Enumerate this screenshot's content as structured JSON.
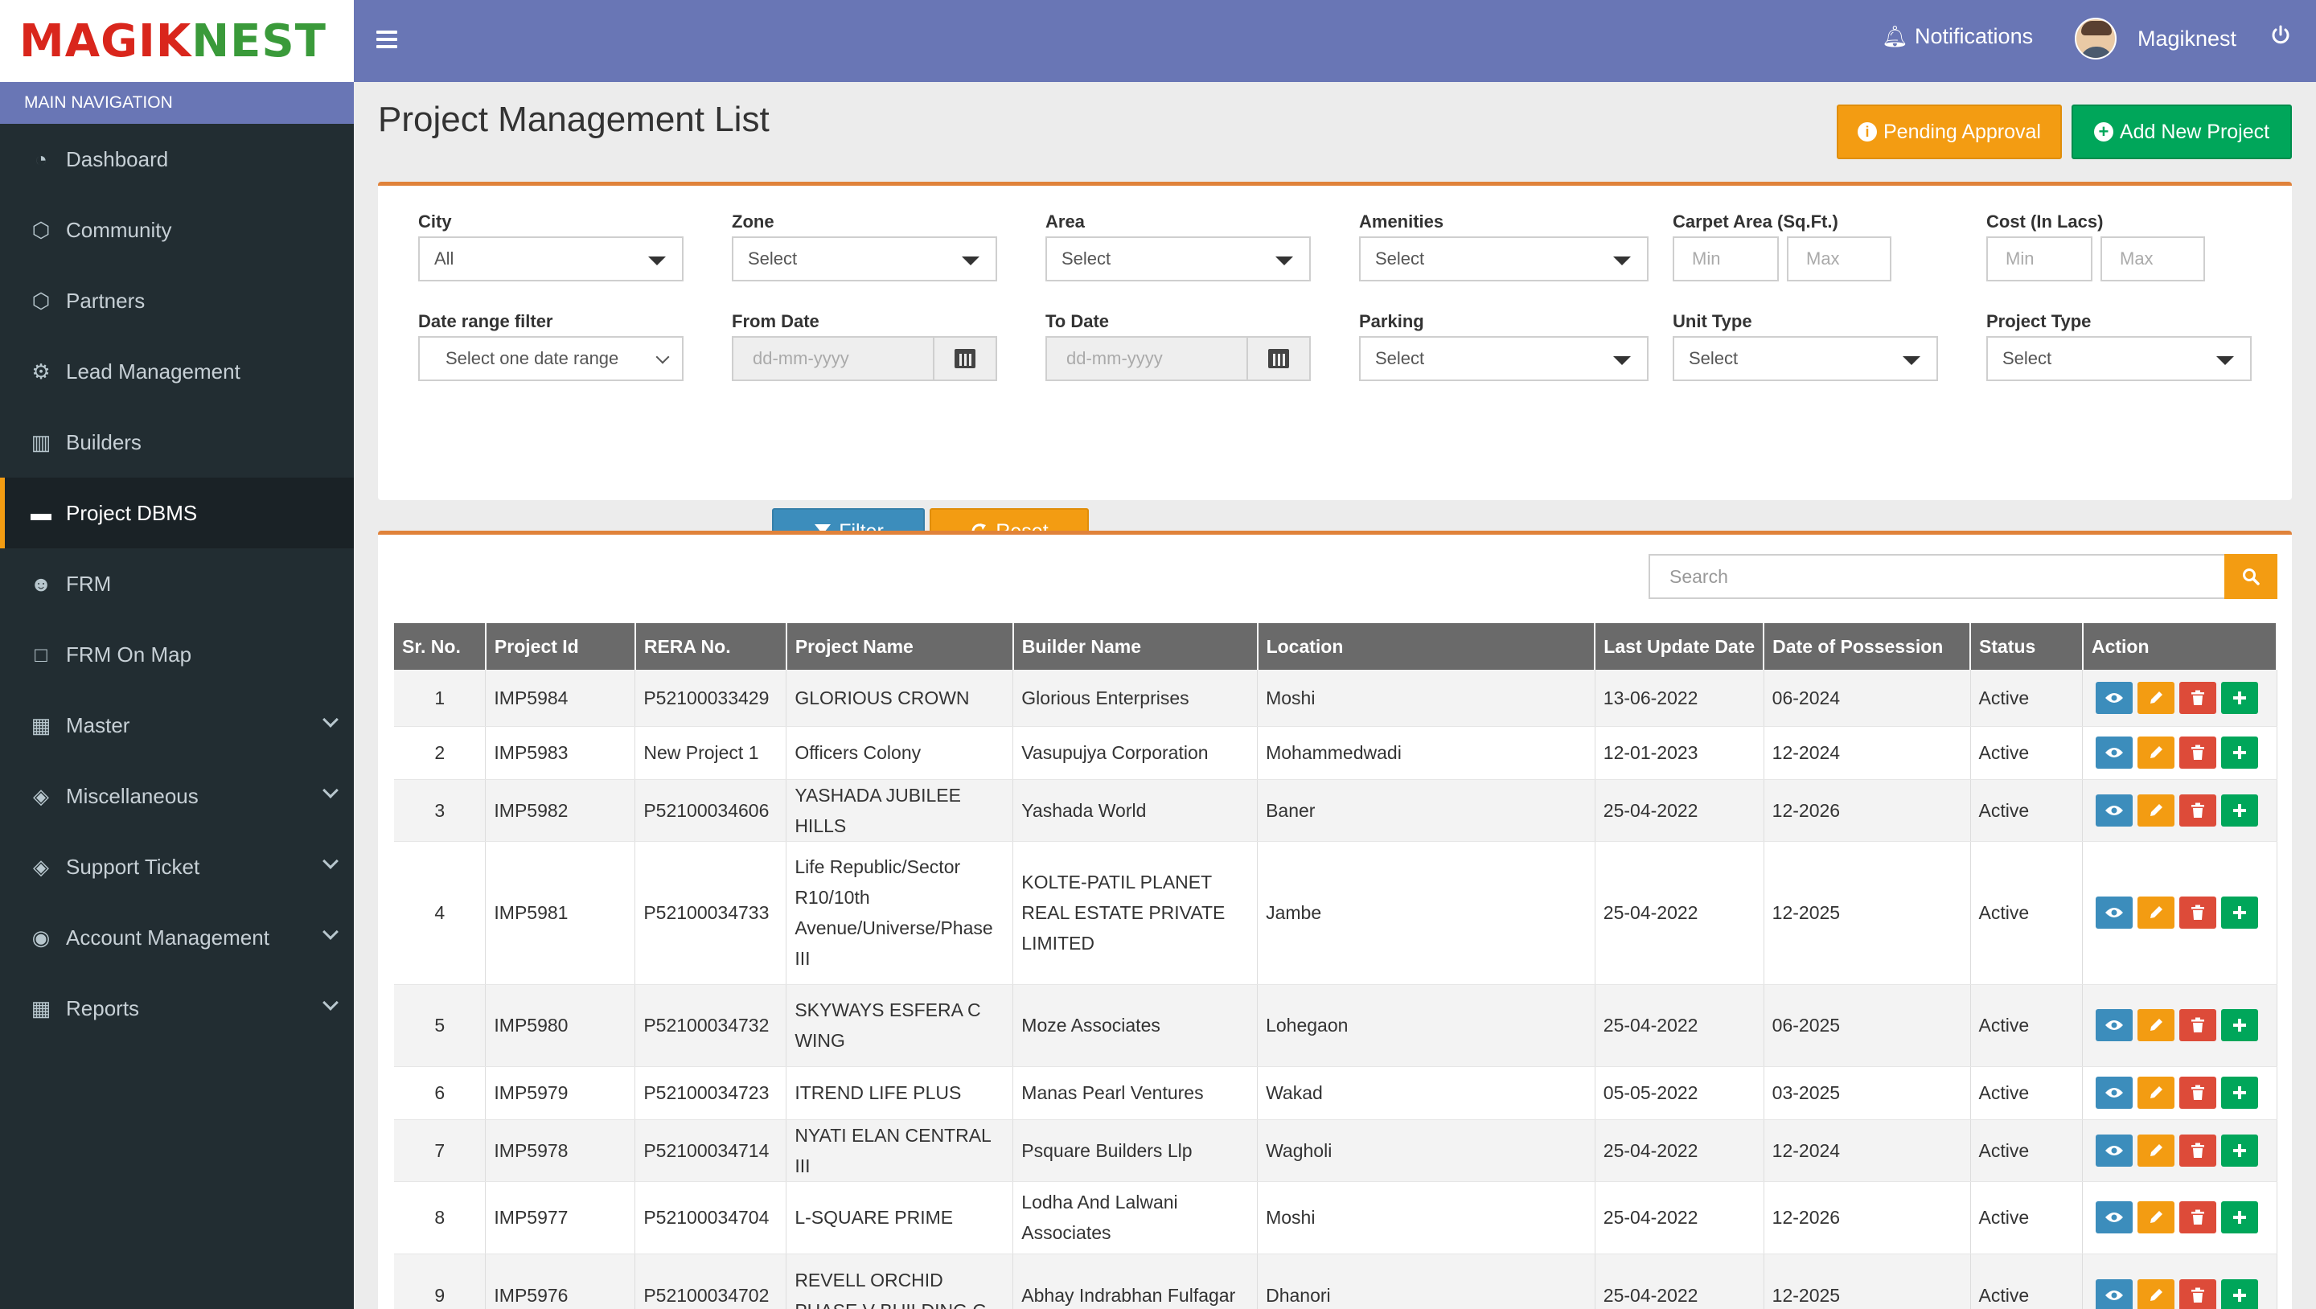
{
  "brand": {
    "logo_part1": "MAG",
    "logo_part2": "IK",
    "logo_part3": "NEST"
  },
  "sidebar": {
    "header": "MAIN NAVIGATION",
    "items": [
      {
        "label": "Dashboard",
        "icon": "dashboard-icon"
      },
      {
        "label": "Community",
        "icon": "community-icon"
      },
      {
        "label": "Partners",
        "icon": "partners-icon"
      },
      {
        "label": "Lead Management",
        "icon": "gear-icon"
      },
      {
        "label": "Builders",
        "icon": "building-icon"
      },
      {
        "label": "Project DBMS",
        "icon": "folder-icon",
        "active": true
      },
      {
        "label": "FRM",
        "icon": "users-icon"
      },
      {
        "label": "FRM On Map",
        "icon": "map-icon"
      },
      {
        "label": "Master",
        "icon": "table-icon",
        "expandable": true
      },
      {
        "label": "Miscellaneous",
        "icon": "tag-icon",
        "expandable": true
      },
      {
        "label": "Support Ticket",
        "icon": "tag-icon",
        "expandable": true
      },
      {
        "label": "Account Management",
        "icon": "user-circle-icon",
        "expandable": true
      },
      {
        "label": "Reports",
        "icon": "table-icon",
        "expandable": true
      }
    ]
  },
  "topbar": {
    "notifications_label": "Notifications",
    "user_name": "Magiknest"
  },
  "page": {
    "title": "Project Management List",
    "pending_label": "Pending Approval",
    "add_label": "Add New Project"
  },
  "filters": {
    "city": {
      "label": "City",
      "value": "All"
    },
    "zone": {
      "label": "Zone",
      "value": "Select"
    },
    "area": {
      "label": "Area",
      "value": "Select"
    },
    "amenities": {
      "label": "Amenities",
      "value": "Select"
    },
    "carpet": {
      "label": "Carpet Area (Sq.Ft.)",
      "min": "Min",
      "max": "Max"
    },
    "cost": {
      "label": "Cost (In Lacs)",
      "min": "Min",
      "max": "Max"
    },
    "date_range": {
      "label": "Date range filter",
      "value": "Select one date range"
    },
    "from_date": {
      "label": "From Date",
      "placeholder": "dd-mm-yyyy"
    },
    "to_date": {
      "label": "To Date",
      "placeholder": "dd-mm-yyyy"
    },
    "parking": {
      "label": "Parking",
      "value": "Select"
    },
    "unit_type": {
      "label": "Unit Type",
      "value": "Select"
    },
    "project_type": {
      "label": "Project Type",
      "value": "Select"
    },
    "filter_label": "Filter",
    "reset_label": "Reset"
  },
  "search": {
    "placeholder": "Search"
  },
  "table": {
    "columns": [
      "Sr. No.",
      "Project Id",
      "RERA No.",
      "Project Name",
      "Builder Name",
      "Location",
      "Last Update Date",
      "Date of Possession",
      "Status",
      "Action"
    ],
    "rows": [
      {
        "sr": "1",
        "id": "IMP5984",
        "rera": "P52100033429",
        "name": "GLORIOUS CROWN",
        "builder": "Glorious Enterprises",
        "location": "Moshi",
        "updated": "13-06-2022",
        "possession": "06-2024",
        "status": "Active"
      },
      {
        "sr": "2",
        "id": "IMP5983",
        "rera": "New Project 1",
        "name": "Officers Colony",
        "builder": "Vasupujya Corporation",
        "location": "Mohammedwadi",
        "updated": "12-01-2023",
        "possession": "12-2024",
        "status": "Active"
      },
      {
        "sr": "3",
        "id": "IMP5982",
        "rera": "P52100034606",
        "name": "YASHADA JUBILEE HILLS",
        "builder": "Yashada World",
        "location": "Baner",
        "updated": "25-04-2022",
        "possession": "12-2026",
        "status": "Active"
      },
      {
        "sr": "4",
        "id": "IMP5981",
        "rera": "P52100034733",
        "name": "Life Republic/Sector R10/10th Avenue/Universe/Phase III",
        "builder": "KOLTE-PATIL PLANET REAL ESTATE PRIVATE LIMITED",
        "location": "Jambe",
        "updated": "25-04-2022",
        "possession": "12-2025",
        "status": "Active"
      },
      {
        "sr": "5",
        "id": "IMP5980",
        "rera": "P52100034732",
        "name": "SKYWAYS ESFERA C WING",
        "builder": "Moze Associates",
        "location": "Lohegaon",
        "updated": "25-04-2022",
        "possession": "06-2025",
        "status": "Active"
      },
      {
        "sr": "6",
        "id": "IMP5979",
        "rera": "P52100034723",
        "name": "ITREND LIFE PLUS",
        "builder": "Manas Pearl Ventures",
        "location": "Wakad",
        "updated": "05-05-2022",
        "possession": "03-2025",
        "status": "Active"
      },
      {
        "sr": "7",
        "id": "IMP5978",
        "rera": "P52100034714",
        "name": "NYATI ELAN CENTRAL III",
        "builder": "Psquare Builders Llp",
        "location": "Wagholi",
        "updated": "25-04-2022",
        "possession": "12-2024",
        "status": "Active"
      },
      {
        "sr": "8",
        "id": "IMP5977",
        "rera": "P52100034704",
        "name": "L-SQUARE PRIME",
        "builder": "Lodha And Lalwani Associates",
        "location": "Moshi",
        "updated": "25-04-2022",
        "possession": "12-2026",
        "status": "Active"
      },
      {
        "sr": "9",
        "id": "IMP5976",
        "rera": "P52100034702",
        "name": "REVELL ORCHID PHASE V BUILDING G",
        "builder": "Abhay Indrabhan Fulfagar",
        "location": "Dhanori",
        "updated": "25-04-2022",
        "possession": "12-2025",
        "status": "Active"
      }
    ]
  },
  "colors": {
    "accent": "#6976b5",
    "sidebar": "#222d32",
    "orange": "#f39c12",
    "green": "#00a65a",
    "blue": "#3c8dbc",
    "red": "#dd4b39"
  }
}
